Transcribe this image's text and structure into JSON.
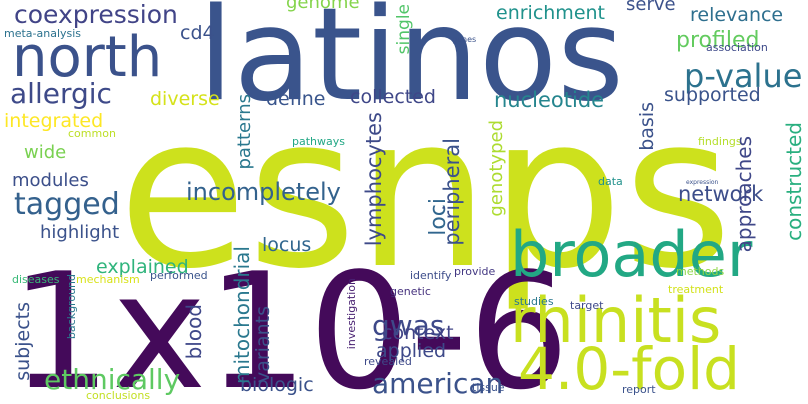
{
  "words": {
    "esnps": "esnps",
    "latinos": "latinos",
    "onex10": "1x10-6",
    "broader": "broader",
    "rhinitis": "rhinitis",
    "fourfold": "4.0-fold",
    "north": "north",
    "coexpression": "coexpression",
    "allergic": "allergic",
    "tagged": "tagged",
    "ethnically": "ethnically",
    "american": "american",
    "pvalue": "p-value",
    "gwas": "gwas",
    "incompletely": "incompletely",
    "network": "network",
    "profiled": "profiled",
    "relevance": "relevance",
    "supported": "supported",
    "enrichment": "enrichment",
    "serve": "serve",
    "genome": "genome",
    "nucleotide": "nucleotide",
    "define": "define",
    "collected": "collected",
    "diverse": "diverse",
    "integrated": "integrated",
    "wide": "wide",
    "modules": "modules",
    "highlight": "highlight",
    "explained": "explained",
    "locus": "locus",
    "context": "context",
    "applied": "applied",
    "biologic": "biologic",
    "cd4": "cd4",
    "meta_analysis": "meta-analysis",
    "common": "common",
    "pathways": "pathways",
    "diseases": "diseases",
    "mechanism": "mechanism",
    "performed": "performed",
    "identify": "identify",
    "provide": "provide",
    "genetic": "genetic",
    "revealed": "revealed",
    "tissue": "tissue",
    "studies": "studies",
    "target": "target",
    "treatment": "treatment",
    "methods": "methods",
    "findings": "findings",
    "data": "data",
    "expression": "expression",
    "genes": "genes",
    "association": "association",
    "report": "report",
    "conclusions": "conclusions",
    "single": "single",
    "patterns": "patterns",
    "genotyped": "genotyped",
    "basis": "basis",
    "approaches": "approaches",
    "constructed": "constructed",
    "lymphocytes": "lymphocytes",
    "loci": "loci",
    "peripheral": "peripheral",
    "mitochondrial": "mitochondrial",
    "blood": "blood",
    "variants": "variants",
    "subjects": "subjects",
    "investigation": "investigation",
    "background": "background"
  },
  "colors": {
    "esnps": "#cde11d",
    "latinos": "#3a548c",
    "onex10": "#440a5a",
    "broader": "#22a884",
    "rhinitis": "#c8e020",
    "fourfold": "#c8e020",
    "north": "#3b528b",
    "coexpression": "#414487",
    "allergic": "#3e4a89",
    "tagged": "#34618d",
    "ethnically": "#5ec962",
    "american": "#3b528b",
    "pvalue": "#2c728e",
    "gwas": "#3e4989",
    "incompletely": "#33628d",
    "network": "#3d4e8a",
    "profiled": "#63cb5f",
    "relevance": "#2e6f8e",
    "supported": "#3a538b",
    "enrichment": "#20928c",
    "serve": "#3b518b",
    "genome": "#84d44b",
    "nucleotide": "#25858e",
    "define": "#39558c",
    "collected": "#3f4788",
    "diverse": "#d5e21a",
    "integrated": "#fde725",
    "wide": "#7ad151",
    "modules": "#3c4f8a",
    "highlight": "#3b528b",
    "explained": "#2fb47c",
    "locus": "#31668e",
    "context": "#414487",
    "applied": "#3e4989",
    "biologic": "#3b528b",
    "cd4": "#3b528b",
    "meta_analysis": "#2c728e",
    "common": "#bddf26",
    "pathways": "#22a785",
    "diseases": "#38b977",
    "mechanism": "#d8e219",
    "performed": "#3a548c",
    "identify": "#3d4d8a",
    "provide": "#443983",
    "genetic": "#46327e",
    "revealed": "#3e4a89",
    "tissue": "#3b528b",
    "studies": "#2a788e",
    "target": "#3e4989",
    "treatment": "#d2e21b",
    "methods": "#8ed645",
    "findings": "#b5de2b",
    "data": "#21918c",
    "expression": "#3b528b",
    "genes": "#3b528b",
    "association": "#3e4a89",
    "report": "#3b528b",
    "conclusions": "#c2df23",
    "single": "#52c569",
    "patterns": "#2a788e",
    "genotyped": "#addc30",
    "basis": "#3b528b",
    "approaches": "#3f4788",
    "constructed": "#29af7f",
    "lymphocytes": "#3e4a89",
    "loci": "#31668e",
    "peripheral": "#3b528b",
    "mitochondrial": "#2a788e",
    "blood": "#3f4889",
    "variants": "#3b528b",
    "subjects": "#3b528b",
    "investigation": "#482071",
    "background": "#2a788e"
  }
}
